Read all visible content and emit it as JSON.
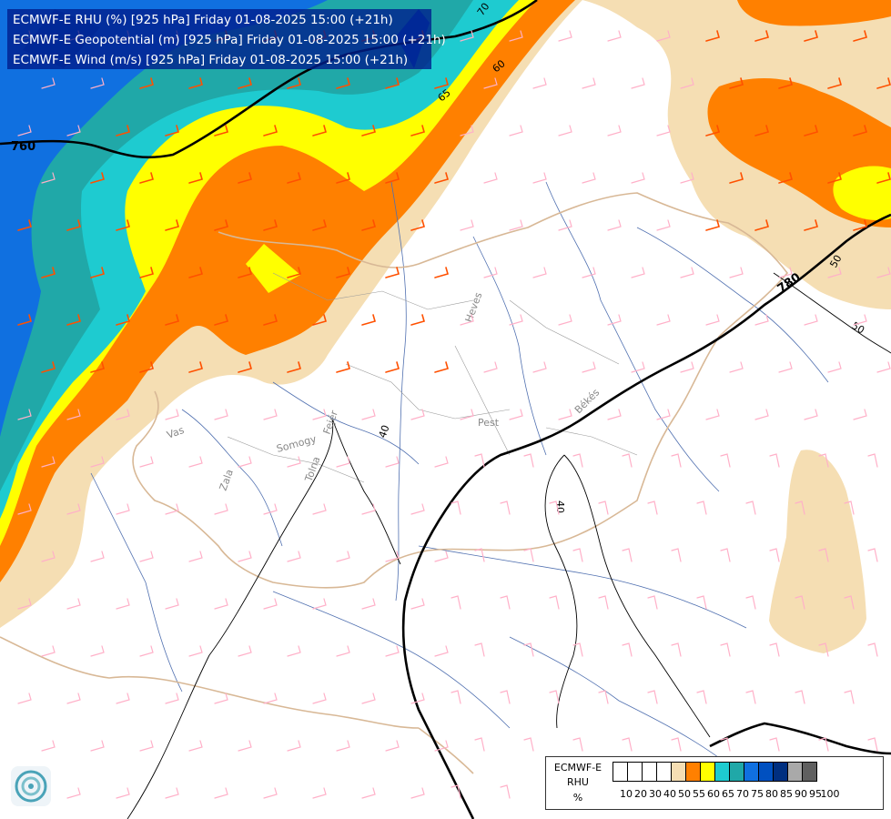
{
  "header": {
    "line1": "ECMWF-E RHU (%) [925 hPa] Friday 01-08-2025 15:00 (+21h)",
    "line2": "ECMWF-E Geopotential (m) [925 hPa] Friday 01-08-2025 15:00 (+21h)",
    "line3": "ECMWF-E Wind (m/s) [925 hPa] Friday 01-08-2025 15:00 (+21h)"
  },
  "legend": {
    "title1": "ECMWF-E",
    "title2": "RHU",
    "unit": "%",
    "ticks": [
      "10",
      "20",
      "30",
      "40",
      "50",
      "55",
      "60",
      "65",
      "70",
      "75",
      "80",
      "85",
      "90",
      "95",
      "100"
    ],
    "colors": [
      "#ffffff",
      "#ffffff",
      "#ffffff",
      "#ffffff",
      "#f5deb3",
      "#ff8000",
      "#ffff00",
      "#1ecbd0",
      "#20a8a8",
      "#1070e0",
      "#0050c0",
      "#002f80",
      "#a9a9a9",
      "#606060"
    ]
  },
  "map_labels": {
    "counties": [
      "Heves",
      "Pest",
      "Békés",
      "Vas",
      "Somogy",
      "Fejér",
      "Zala",
      "Tolna"
    ],
    "rhu_contours": [
      "70",
      "65",
      "60",
      "50",
      "40",
      "40",
      "50"
    ],
    "geopotential_contours": [
      "760",
      "780"
    ]
  },
  "colors": {
    "title_background": "#001e8c",
    "rhu_55": "#ff8000",
    "rhu_50": "#f5deb3",
    "rhu_60": "#ffff00",
    "rhu_65": "#1ecbd0",
    "rhu_70": "#20a8a8",
    "rhu_75": "#1070e0",
    "rhu_80": "#0050c0",
    "rhu_85": "#002f80",
    "wind_barb_light": "#ffb0c8",
    "wind_barb_strong": "#ff5000",
    "rivers": "#5070b0",
    "borders": "#d8b896",
    "contour_line": "#000000"
  }
}
